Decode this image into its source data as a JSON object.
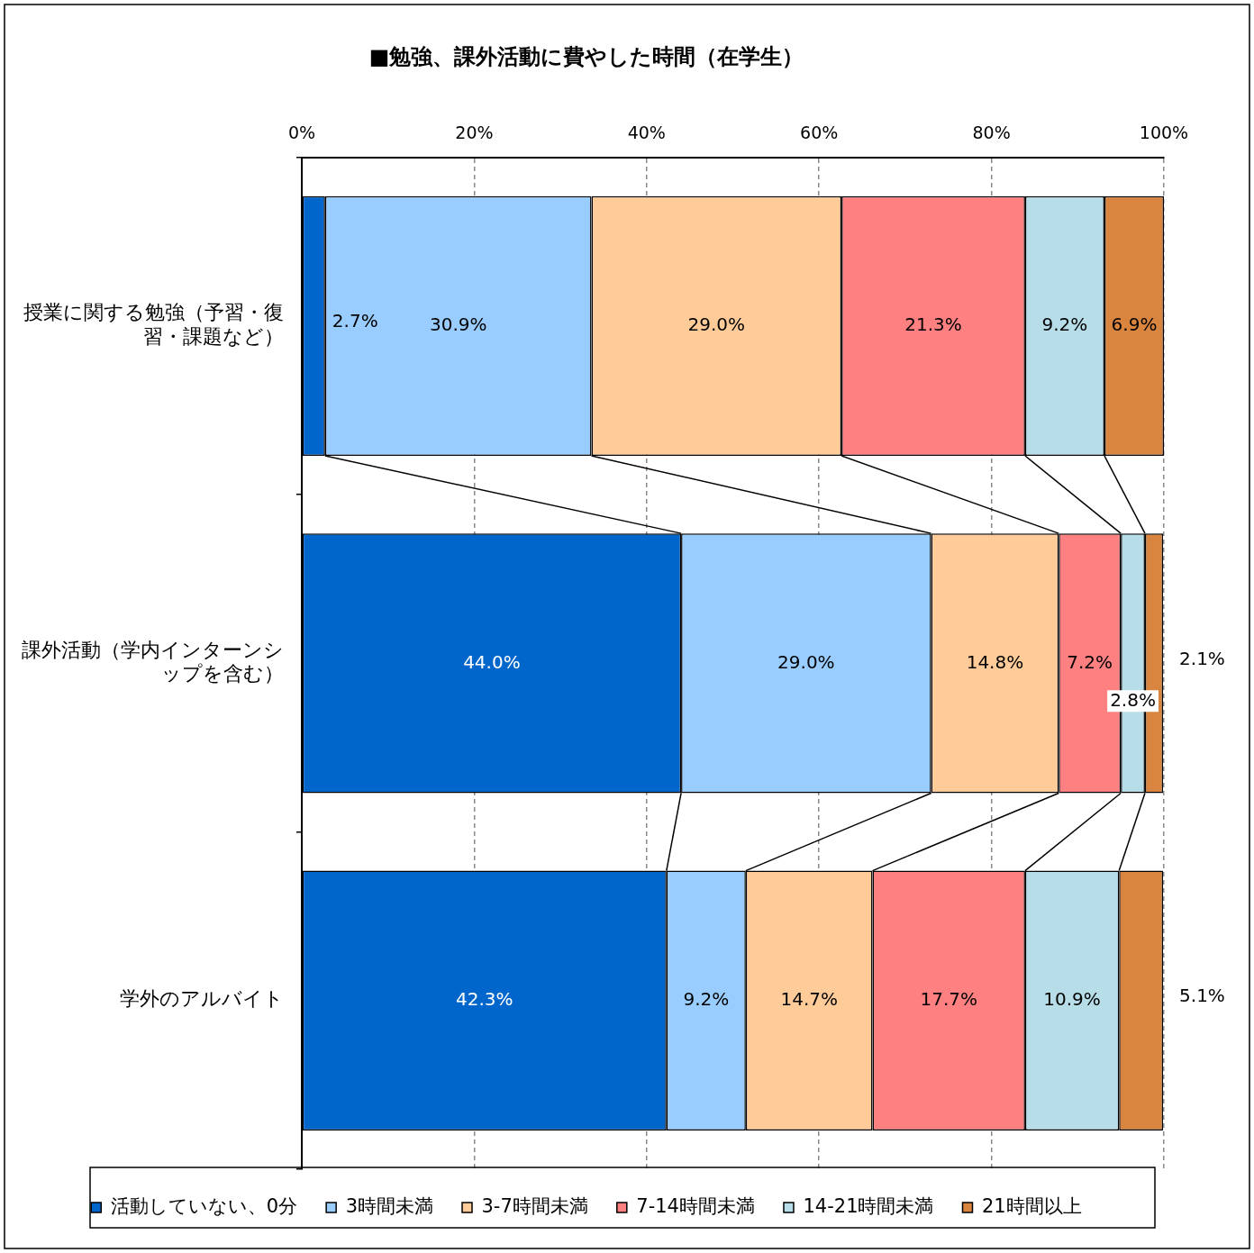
{
  "chart_data": {
    "type": "bar",
    "orientation": "horizontal",
    "stacked": true,
    "title": "■勉強、課外活動に費やした時間（在学生）",
    "categories": [
      "授業に関する勉強（予習・復習・課題など）",
      "課外活動（学内インターンシップを含む）",
      "学外のアルバイト"
    ],
    "series": [
      {
        "name": "活動していない、0分",
        "color": "#0066cc",
        "values": [
          2.7,
          44.0,
          42.3
        ]
      },
      {
        "name": "3時間未満",
        "color": "#99ccff",
        "values": [
          30.9,
          29.0,
          9.2
        ]
      },
      {
        "name": "3-7時間未満",
        "color": "#ffcc99",
        "values": [
          29.0,
          14.8,
          14.7
        ]
      },
      {
        "name": "7-14時間未満",
        "color": "#ff8080",
        "values": [
          21.3,
          7.2,
          17.7
        ]
      },
      {
        "name": "14-21時間未満",
        "color": "#b7dde8",
        "values": [
          9.2,
          2.8,
          10.9
        ]
      },
      {
        "name": "21時間以上",
        "color": "#d9843f",
        "values": [
          6.9,
          2.1,
          5.1
        ]
      }
    ],
    "xlim": [
      0,
      100
    ],
    "xticks": [
      {
        "value": 0,
        "label": "0%"
      },
      {
        "value": 20,
        "label": "20%"
      },
      {
        "value": 40,
        "label": "40%"
      },
      {
        "value": 60,
        "label": "60%"
      },
      {
        "value": 80,
        "label": "80%"
      },
      {
        "value": 100,
        "label": "100%"
      }
    ],
    "value_labels": [
      [
        "2.7%",
        "44.0%",
        "42.3%"
      ],
      [
        "30.9%",
        "29.0%",
        "9.2%"
      ],
      [
        "29.0%",
        "14.8%",
        "14.7%"
      ],
      [
        "21.3%",
        "7.2%",
        "17.7%"
      ],
      [
        "9.2%",
        "2.8%",
        "10.9%"
      ],
      [
        "6.9%",
        "2.1%",
        "5.1%"
      ]
    ],
    "grid": "x",
    "legend": "bottom"
  }
}
